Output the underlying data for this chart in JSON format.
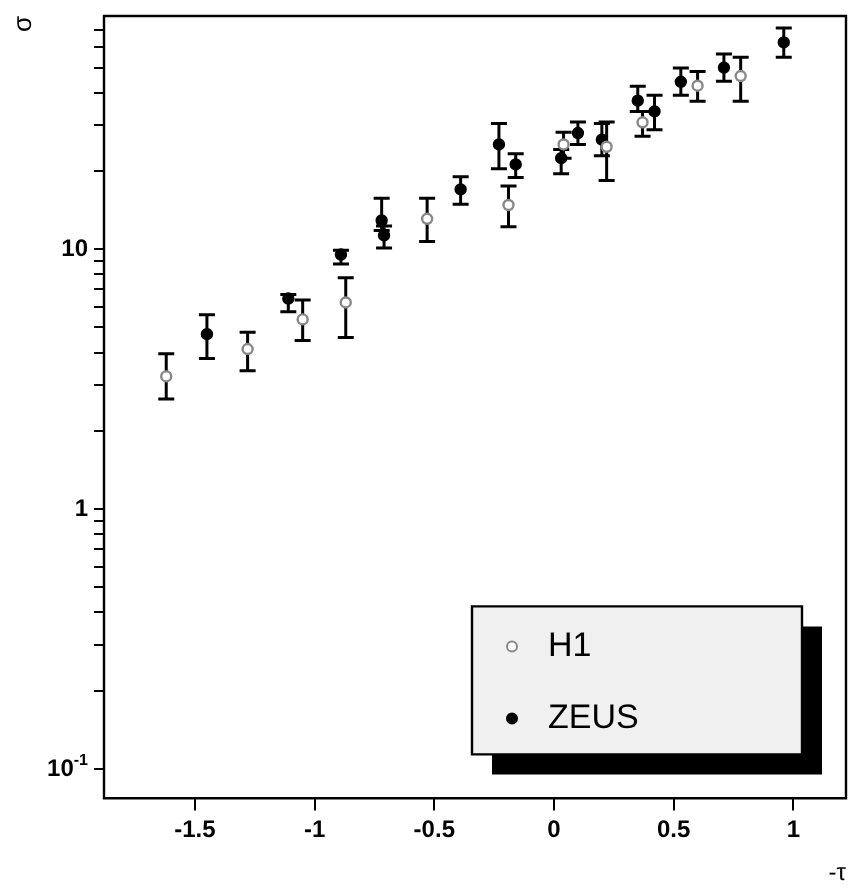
{
  "chart_data": {
    "type": "scatter",
    "xlabel": "-τ",
    "ylabel": "σ",
    "log": "y",
    "grid": false,
    "legend": "bottom right",
    "marker": "circle",
    "xlim": [
      -1.88,
      1.22
    ],
    "ylim": [
      0.077,
      79
    ],
    "xticks": [
      -1.5,
      -1,
      -0.5,
      0,
      0.5,
      1
    ],
    "yticks": [
      {
        "value": 0.1,
        "label": "10$^{-1}$"
      },
      {
        "value": 0.2,
        "label": null
      },
      {
        "value": 0.3,
        "label": null
      },
      {
        "value": 0.4,
        "label": null
      },
      {
        "value": 0.5,
        "label": null
      },
      {
        "value": 0.6,
        "label": null
      },
      {
        "value": 0.7,
        "label": null
      },
      {
        "value": 0.8,
        "label": null
      },
      {
        "value": 0.9,
        "label": null
      },
      1,
      {
        "value": 2,
        "label": null
      },
      {
        "value": 3,
        "label": null
      },
      {
        "value": 4,
        "label": null
      },
      {
        "value": 5,
        "label": null
      },
      {
        "value": 6,
        "label": null
      },
      {
        "value": 7,
        "label": null
      },
      {
        "value": 8,
        "label": null
      },
      {
        "value": 9,
        "label": null
      },
      10,
      {
        "value": 20,
        "label": null
      },
      {
        "value": 30,
        "label": null
      },
      {
        "value": 40,
        "label": null
      },
      {
        "value": 50,
        "label": null
      },
      {
        "value": 60,
        "label": null
      },
      {
        "value": 70,
        "label": null
      }
    ],
    "series": [
      {
        "name": "H1",
        "color": "#888888",
        "x": [
          -1.62,
          -1.28,
          -1.05,
          -0.87,
          -0.53,
          -0.19,
          0.04,
          0.22,
          0.37,
          0.6,
          0.78
        ],
        "values": [
          3.24,
          4.13,
          5.37,
          6.24,
          13.1,
          14.8,
          25.3,
          24.8,
          30.8,
          42.6,
          46.4
        ],
        "errors": [
          [
            2.65,
            3.96
          ],
          [
            3.41,
            4.79
          ],
          [
            4.45,
            6.38
          ],
          [
            4.57,
            7.76
          ],
          [
            10.7,
            15.7
          ],
          [
            12.2,
            17.5
          ],
          [
            22.4,
            28.2
          ],
          [
            18.4,
            30.9
          ],
          [
            27.2,
            33.9
          ],
          [
            37.1,
            48.3
          ],
          [
            37.1,
            54.8
          ]
        ]
      },
      {
        "name": "ZEUS",
        "color": "#000000",
        "x": [
          -1.45,
          -1.11,
          -0.89,
          -0.72,
          -0.71,
          -0.39,
          -0.23,
          -0.16,
          0.03,
          0.1,
          0.2,
          0.35,
          0.42,
          0.53,
          0.71,
          0.96
        ],
        "values": [
          4.71,
          6.46,
          9.54,
          12.9,
          11.3,
          17.0,
          25.3,
          21.2,
          22.4,
          28.0,
          26.4,
          37.3,
          33.9,
          44.1,
          50.0,
          62.5
        ],
        "errors": [
          [
            3.8,
            5.59
          ],
          [
            5.75,
            6.7
          ],
          [
            8.77,
            9.9
          ],
          [
            11.8,
            15.7
          ],
          [
            10.1,
            12.3
          ],
          [
            14.9,
            19.0
          ],
          [
            20.4,
            30.5
          ],
          [
            18.9,
            23.3
          ],
          [
            19.5,
            24.2
          ],
          [
            25.3,
            30.9
          ],
          [
            22.9,
            30.5
          ],
          [
            33.9,
            42.4
          ],
          [
            28.8,
            39.1
          ],
          [
            39.1,
            49.8
          ],
          [
            44.3,
            56.4
          ],
          [
            54.8,
            71.1
          ]
        ]
      }
    ]
  }
}
